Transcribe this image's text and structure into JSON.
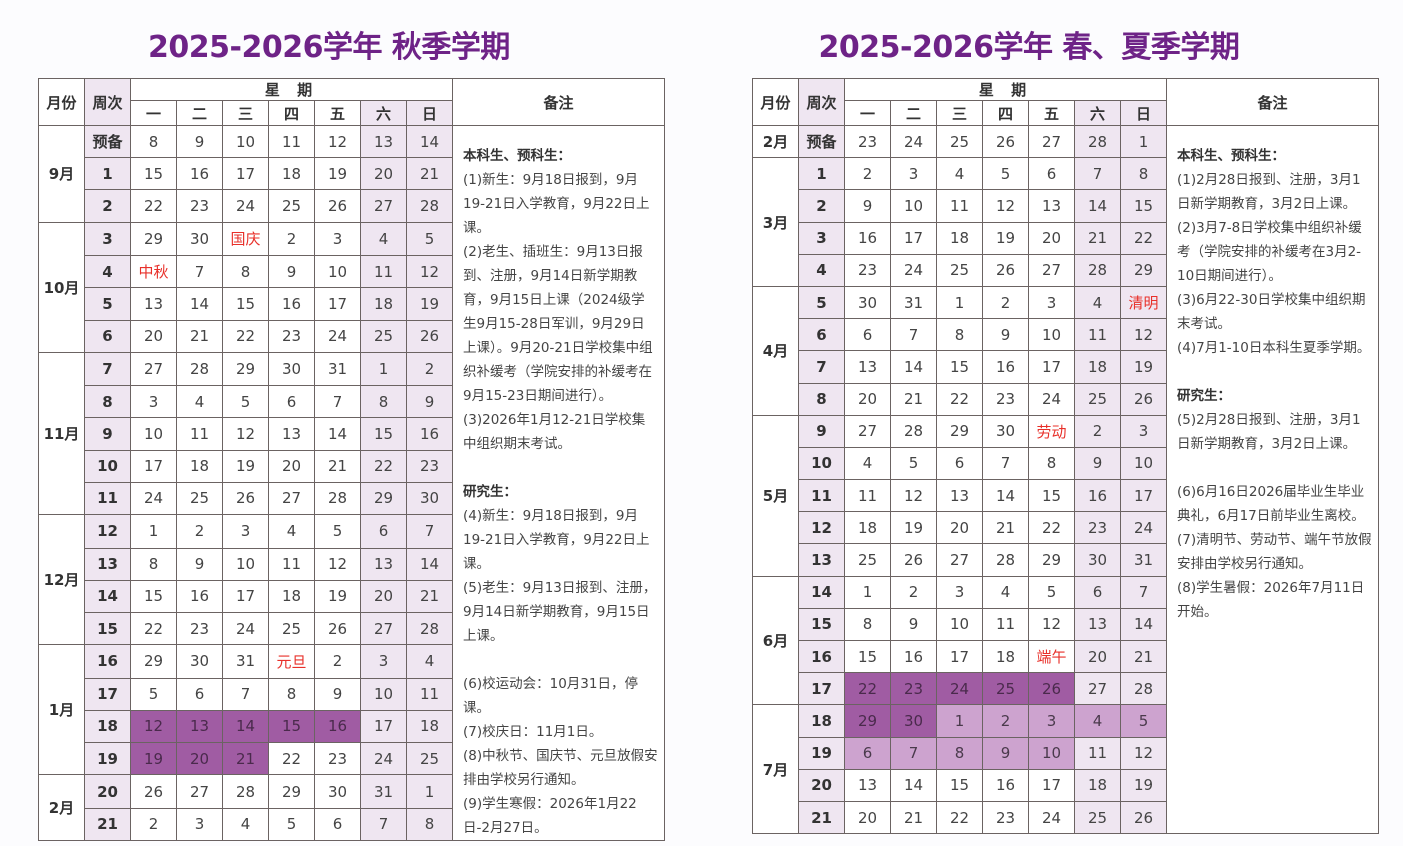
{
  "colors": {
    "title": "#6e2387",
    "weekend_bg": "#efe6f1",
    "exam_highlight": "#a05ca3",
    "summer_term_highlight": "#cda3cf",
    "holiday_text": "#e8302a",
    "border": "#6b6362"
  },
  "headers": {
    "month": "月份",
    "week": "周次",
    "weekday_group": "星 期",
    "weekdays": [
      "一",
      "二",
      "三",
      "四",
      "五",
      "六",
      "日"
    ],
    "notes": "备注"
  },
  "autumn": {
    "title": "2025-2026学年 秋季学期",
    "months": [
      {
        "label": "9月",
        "span": 3
      },
      {
        "label": "10月",
        "span": 4
      },
      {
        "label": "11月",
        "span": 5
      },
      {
        "label": "12月",
        "span": 4
      },
      {
        "label": "1月",
        "span": 4
      },
      {
        "label": "2月",
        "span": 2
      }
    ],
    "rows": [
      {
        "week": "预备",
        "days": [
          "8",
          "9",
          "10",
          "11",
          "12",
          "13",
          "14"
        ]
      },
      {
        "week": "1",
        "days": [
          "15",
          "16",
          "17",
          "18",
          "19",
          "20",
          "21"
        ]
      },
      {
        "week": "2",
        "days": [
          "22",
          "23",
          "24",
          "25",
          "26",
          "27",
          "28"
        ]
      },
      {
        "week": "3",
        "days": [
          "29",
          "30",
          "国庆",
          "2",
          "3",
          "4",
          "5"
        ]
      },
      {
        "week": "4",
        "days": [
          "中秋",
          "7",
          "8",
          "9",
          "10",
          "11",
          "12"
        ]
      },
      {
        "week": "5",
        "days": [
          "13",
          "14",
          "15",
          "16",
          "17",
          "18",
          "19"
        ]
      },
      {
        "week": "6",
        "days": [
          "20",
          "21",
          "22",
          "23",
          "24",
          "25",
          "26"
        ]
      },
      {
        "week": "7",
        "days": [
          "27",
          "28",
          "29",
          "30",
          "31",
          "1",
          "2"
        ]
      },
      {
        "week": "8",
        "days": [
          "3",
          "4",
          "5",
          "6",
          "7",
          "8",
          "9"
        ]
      },
      {
        "week": "9",
        "days": [
          "10",
          "11",
          "12",
          "13",
          "14",
          "15",
          "16"
        ]
      },
      {
        "week": "10",
        "days": [
          "17",
          "18",
          "19",
          "20",
          "21",
          "22",
          "23"
        ]
      },
      {
        "week": "11",
        "days": [
          "24",
          "25",
          "26",
          "27",
          "28",
          "29",
          "30"
        ]
      },
      {
        "week": "12",
        "days": [
          "1",
          "2",
          "3",
          "4",
          "5",
          "6",
          "7"
        ]
      },
      {
        "week": "13",
        "days": [
          "8",
          "9",
          "10",
          "11",
          "12",
          "13",
          "14"
        ]
      },
      {
        "week": "14",
        "days": [
          "15",
          "16",
          "17",
          "18",
          "19",
          "20",
          "21"
        ]
      },
      {
        "week": "15",
        "days": [
          "22",
          "23",
          "24",
          "25",
          "26",
          "27",
          "28"
        ]
      },
      {
        "week": "16",
        "days": [
          "29",
          "30",
          "31",
          "元旦",
          "2",
          "3",
          "4"
        ]
      },
      {
        "week": "17",
        "days": [
          "5",
          "6",
          "7",
          "8",
          "9",
          "10",
          "11"
        ]
      },
      {
        "week": "18",
        "days": [
          "12",
          "13",
          "14",
          "15",
          "16",
          "17",
          "18"
        ]
      },
      {
        "week": "19",
        "days": [
          "19",
          "20",
          "21",
          "22",
          "23",
          "24",
          "25"
        ]
      },
      {
        "week": "20",
        "days": [
          "26",
          "27",
          "28",
          "29",
          "30",
          "31",
          "1"
        ]
      },
      {
        "week": "21",
        "days": [
          "2",
          "3",
          "4",
          "5",
          "6",
          "7",
          "8"
        ]
      }
    ],
    "holidays": [
      [
        3,
        2
      ],
      [
        4,
        0
      ],
      [
        16,
        3
      ]
    ],
    "exam_cells": [
      [
        18,
        0
      ],
      [
        18,
        1
      ],
      [
        18,
        2
      ],
      [
        18,
        3
      ],
      [
        18,
        4
      ],
      [
        19,
        0
      ],
      [
        19,
        1
      ],
      [
        19,
        2
      ]
    ],
    "summer_cells": [],
    "notes": [
      {
        "type": "title",
        "text": "本科生、预科生："
      },
      {
        "type": "text",
        "text": "(1)新生：9月18日报到，9月19-21日入学教育，9月22日上课。"
      },
      {
        "type": "text",
        "text": "(2)老生、插班生：9月13日报到、注册，9月14日新学期教育，9月15日上课（2024级学生9月15-28日军训，9月29日上课）。9月20-21日学校集中组织补缓考（学院安排的补缓考在9月15-23日期间进行）。"
      },
      {
        "type": "text",
        "text": "(3)2026年1月12-21日学校集中组织期末考试。"
      },
      {
        "type": "gap"
      },
      {
        "type": "title",
        "text": "研究生："
      },
      {
        "type": "text",
        "text": "(4)新生：9月18日报到，9月19-21日入学教育，9月22日上课。"
      },
      {
        "type": "text",
        "text": "(5)老生：9月13日报到、注册，9月14日新学期教育，9月15日上课。"
      },
      {
        "type": "gap"
      },
      {
        "type": "text",
        "text": "(6)校运动会：10月31日，停课。"
      },
      {
        "type": "text",
        "text": "(7)校庆日：11月1日。"
      },
      {
        "type": "text",
        "text": "(8)中秋节、国庆节、元旦放假安排由学校另行通知。"
      },
      {
        "type": "text",
        "text": "(9)学生寒假：2026年1月22日-2月27日。"
      }
    ]
  },
  "spring": {
    "title": "2025-2026学年 春、夏季学期",
    "months": [
      {
        "label": "2月",
        "span": 1
      },
      {
        "label": "3月",
        "span": 4
      },
      {
        "label": "4月",
        "span": 4
      },
      {
        "label": "5月",
        "span": 5
      },
      {
        "label": "6月",
        "span": 4
      },
      {
        "label": "7月",
        "span": 4
      }
    ],
    "rows": [
      {
        "week": "预备",
        "days": [
          "23",
          "24",
          "25",
          "26",
          "27",
          "28",
          "1"
        ]
      },
      {
        "week": "1",
        "days": [
          "2",
          "3",
          "4",
          "5",
          "6",
          "7",
          "8"
        ]
      },
      {
        "week": "2",
        "days": [
          "9",
          "10",
          "11",
          "12",
          "13",
          "14",
          "15"
        ]
      },
      {
        "week": "3",
        "days": [
          "16",
          "17",
          "18",
          "19",
          "20",
          "21",
          "22"
        ]
      },
      {
        "week": "4",
        "days": [
          "23",
          "24",
          "25",
          "26",
          "27",
          "28",
          "29"
        ]
      },
      {
        "week": "5",
        "days": [
          "30",
          "31",
          "1",
          "2",
          "3",
          "4",
          "清明"
        ]
      },
      {
        "week": "6",
        "days": [
          "6",
          "7",
          "8",
          "9",
          "10",
          "11",
          "12"
        ]
      },
      {
        "week": "7",
        "days": [
          "13",
          "14",
          "15",
          "16",
          "17",
          "18",
          "19"
        ]
      },
      {
        "week": "8",
        "days": [
          "20",
          "21",
          "22",
          "23",
          "24",
          "25",
          "26"
        ]
      },
      {
        "week": "9",
        "days": [
          "27",
          "28",
          "29",
          "30",
          "劳动",
          "2",
          "3"
        ]
      },
      {
        "week": "10",
        "days": [
          "4",
          "5",
          "6",
          "7",
          "8",
          "9",
          "10"
        ]
      },
      {
        "week": "11",
        "days": [
          "11",
          "12",
          "13",
          "14",
          "15",
          "16",
          "17"
        ]
      },
      {
        "week": "12",
        "days": [
          "18",
          "19",
          "20",
          "21",
          "22",
          "23",
          "24"
        ]
      },
      {
        "week": "13",
        "days": [
          "25",
          "26",
          "27",
          "28",
          "29",
          "30",
          "31"
        ]
      },
      {
        "week": "14",
        "days": [
          "1",
          "2",
          "3",
          "4",
          "5",
          "6",
          "7"
        ]
      },
      {
        "week": "15",
        "days": [
          "8",
          "9",
          "10",
          "11",
          "12",
          "13",
          "14"
        ]
      },
      {
        "week": "16",
        "days": [
          "15",
          "16",
          "17",
          "18",
          "端午",
          "20",
          "21"
        ]
      },
      {
        "week": "17",
        "days": [
          "22",
          "23",
          "24",
          "25",
          "26",
          "27",
          "28"
        ]
      },
      {
        "week": "18",
        "days": [
          "29",
          "30",
          "1",
          "2",
          "3",
          "4",
          "5"
        ]
      },
      {
        "week": "19",
        "days": [
          "6",
          "7",
          "8",
          "9",
          "10",
          "11",
          "12"
        ]
      },
      {
        "week": "20",
        "days": [
          "13",
          "14",
          "15",
          "16",
          "17",
          "18",
          "19"
        ]
      },
      {
        "week": "21",
        "days": [
          "20",
          "21",
          "22",
          "23",
          "24",
          "25",
          "26"
        ]
      }
    ],
    "holidays": [
      [
        5,
        6
      ],
      [
        9,
        4
      ],
      [
        16,
        4
      ]
    ],
    "exam_cells": [
      [
        17,
        0
      ],
      [
        17,
        1
      ],
      [
        17,
        2
      ],
      [
        17,
        3
      ],
      [
        17,
        4
      ],
      [
        18,
        0
      ],
      [
        18,
        1
      ]
    ],
    "summer_cells": [
      [
        18,
        2
      ],
      [
        18,
        3
      ],
      [
        18,
        4
      ],
      [
        18,
        5
      ],
      [
        18,
        6
      ],
      [
        19,
        0
      ],
      [
        19,
        1
      ],
      [
        19,
        2
      ],
      [
        19,
        3
      ],
      [
        19,
        4
      ]
    ],
    "notes": [
      {
        "type": "title",
        "text": "本科生、预科生："
      },
      {
        "type": "text",
        "text": "(1)2月28日报到、注册，3月1日新学期教育，3月2日上课。"
      },
      {
        "type": "text",
        "text": "(2)3月7-8日学校集中组织补缓考（学院安排的补缓考在3月2-10日期间进行）。"
      },
      {
        "type": "text",
        "text": "(3)6月22-30日学校集中组织期末考试。"
      },
      {
        "type": "text",
        "text": "(4)7月1-10日本科生夏季学期。"
      },
      {
        "type": "gap"
      },
      {
        "type": "title",
        "text": "研究生："
      },
      {
        "type": "text",
        "text": "(5)2月28日报到、注册，3月1日新学期教育，3月2日上课。"
      },
      {
        "type": "gap"
      },
      {
        "type": "text",
        "text": "(6)6月16日2026届毕业生毕业典礼，6月17日前毕业生离校。"
      },
      {
        "type": "text",
        "text": "(7)清明节、劳动节、端午节放假安排由学校另行通知。"
      },
      {
        "type": "text",
        "text": "(8)学生暑假：2026年7月11日开始。"
      }
    ]
  }
}
